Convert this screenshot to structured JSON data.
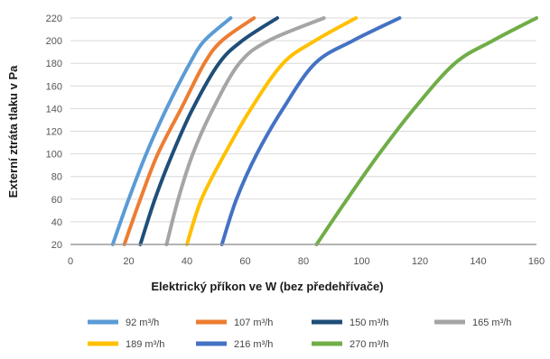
{
  "chart_data": {
    "type": "line",
    "xlabel": "Elektrický příkon ve W (bez předehřívače)",
    "ylabel": "Externí ztráta tlaku v Pa",
    "xlim": [
      0,
      160
    ],
    "ylim": [
      20,
      220
    ],
    "x_ticks": [
      "0",
      "20",
      "40",
      "60",
      "80",
      "100",
      "120",
      "140",
      "160"
    ],
    "y_ticks": [
      "20",
      "40",
      "60",
      "80",
      "100",
      "120",
      "140",
      "160",
      "180",
      "200",
      "220"
    ],
    "grid": "horizontal",
    "legend_position": "bottom",
    "series": [
      {
        "name": "92 m³/h",
        "color": "#5b9bd5",
        "points": [
          [
            14.5,
            20
          ],
          [
            20,
            60
          ],
          [
            26,
            100
          ],
          [
            33,
            140
          ],
          [
            41,
            180
          ],
          [
            46,
            200
          ],
          [
            55,
            220
          ]
        ]
      },
      {
        "name": "107 m³/h",
        "color": "#ed7d31",
        "points": [
          [
            18.5,
            20
          ],
          [
            24,
            60
          ],
          [
            30,
            100
          ],
          [
            38,
            140
          ],
          [
            46,
            180
          ],
          [
            52,
            200
          ],
          [
            63,
            220
          ]
        ]
      },
      {
        "name": "150 m³/h",
        "color": "#1f4e79",
        "points": [
          [
            24,
            20
          ],
          [
            29,
            60
          ],
          [
            35,
            100
          ],
          [
            42,
            140
          ],
          [
            51,
            180
          ],
          [
            59,
            200
          ],
          [
            71,
            220
          ]
        ]
      },
      {
        "name": "165 m³/h",
        "color": "#a5a5a5",
        "points": [
          [
            33,
            20
          ],
          [
            37,
            60
          ],
          [
            42,
            100
          ],
          [
            49,
            140
          ],
          [
            58,
            180
          ],
          [
            68,
            200
          ],
          [
            87,
            220
          ]
        ]
      },
      {
        "name": "189 m³/h",
        "color": "#ffc000",
        "points": [
          [
            40,
            20
          ],
          [
            45,
            60
          ],
          [
            53,
            100
          ],
          [
            62,
            140
          ],
          [
            73,
            180
          ],
          [
            84,
            200
          ],
          [
            98,
            220
          ]
        ]
      },
      {
        "name": "216 m³/h",
        "color": "#4472c4",
        "points": [
          [
            52,
            20
          ],
          [
            57,
            60
          ],
          [
            64,
            100
          ],
          [
            73,
            140
          ],
          [
            84,
            180
          ],
          [
            97,
            200
          ],
          [
            113,
            220
          ]
        ]
      },
      {
        "name": "270 m³/h",
        "color": "#70ad47",
        "points": [
          [
            84.5,
            20
          ],
          [
            95,
            60
          ],
          [
            106,
            100
          ],
          [
            118,
            140
          ],
          [
            132,
            180
          ],
          [
            145,
            200
          ],
          [
            160,
            220
          ]
        ]
      }
    ]
  }
}
